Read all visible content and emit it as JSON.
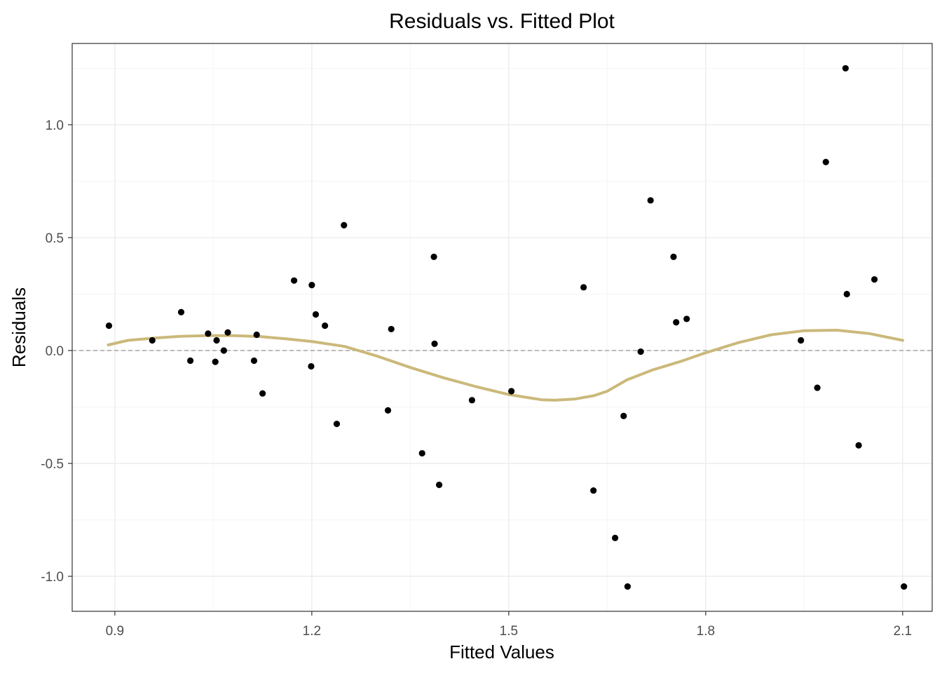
{
  "chart_data": {
    "type": "scatter",
    "title": "Residuals vs. Fitted Plot",
    "xlabel": "Fitted Values",
    "ylabel": "Residuals",
    "xlim": [
      0.835,
      2.145
    ],
    "ylim": [
      -1.155,
      1.36
    ],
    "x_ticks": [
      0.9,
      1.2,
      1.5,
      1.8,
      2.1
    ],
    "x_tick_labels": [
      "0.9",
      "1.2",
      "1.5",
      "1.8",
      "2.1"
    ],
    "y_ticks": [
      -1.0,
      -0.5,
      0.0,
      0.5,
      1.0
    ],
    "y_tick_labels": [
      "-1.0",
      "-0.5",
      "0.0",
      "0.5",
      "1.0"
    ],
    "grid": true,
    "reference_line": {
      "y": 0.0,
      "style": "dashed",
      "color": "#a6a6a6"
    },
    "colors": {
      "points": "#000000",
      "smooth": "#cbb97b",
      "grid_major": "#ebebeb",
      "grid_minor": "#f5f5f5",
      "panel_border": "#333333"
    },
    "points": {
      "x": [
        0.891,
        0.957,
        1.001,
        1.015,
        1.042,
        1.053,
        1.055,
        1.066,
        1.072,
        1.112,
        1.116,
        1.125,
        1.173,
        1.199,
        1.2,
        1.206,
        1.22,
        1.238,
        1.249,
        1.316,
        1.321,
        1.368,
        1.386,
        1.387,
        1.394,
        1.444,
        1.504,
        1.614,
        1.629,
        1.662,
        1.675,
        1.681,
        1.701,
        1.716,
        1.751,
        1.755,
        1.771,
        1.945,
        1.97,
        1.983,
        2.013,
        2.015,
        2.033,
        2.057,
        2.102
      ],
      "y": [
        0.11,
        0.045,
        0.17,
        -0.045,
        0.075,
        -0.05,
        0.045,
        0.0,
        0.08,
        -0.045,
        0.07,
        -0.19,
        0.31,
        -0.07,
        0.29,
        0.16,
        0.11,
        -0.325,
        0.555,
        -0.265,
        0.095,
        -0.455,
        0.415,
        0.03,
        -0.595,
        -0.22,
        -0.18,
        0.28,
        -0.62,
        -0.83,
        -0.29,
        -1.045,
        -0.005,
        0.665,
        0.415,
        0.125,
        0.14,
        0.045,
        -0.165,
        0.835,
        1.25,
        0.25,
        -0.42,
        0.315,
        -1.045
      ]
    },
    "smooth_line": {
      "x": [
        0.89,
        0.92,
        0.96,
        1.0,
        1.04,
        1.08,
        1.12,
        1.16,
        1.2,
        1.25,
        1.3,
        1.35,
        1.4,
        1.45,
        1.5,
        1.55,
        1.57,
        1.6,
        1.63,
        1.65,
        1.68,
        1.72,
        1.76,
        1.8,
        1.85,
        1.9,
        1.95,
        2.0,
        2.05,
        2.1
      ],
      "y": [
        0.025,
        0.045,
        0.055,
        0.063,
        0.066,
        0.066,
        0.062,
        0.052,
        0.04,
        0.018,
        -0.025,
        -0.075,
        -0.12,
        -0.16,
        -0.195,
        -0.218,
        -0.22,
        -0.215,
        -0.2,
        -0.18,
        -0.13,
        -0.085,
        -0.05,
        -0.01,
        0.035,
        0.07,
        0.088,
        0.09,
        0.075,
        0.045
      ]
    }
  }
}
